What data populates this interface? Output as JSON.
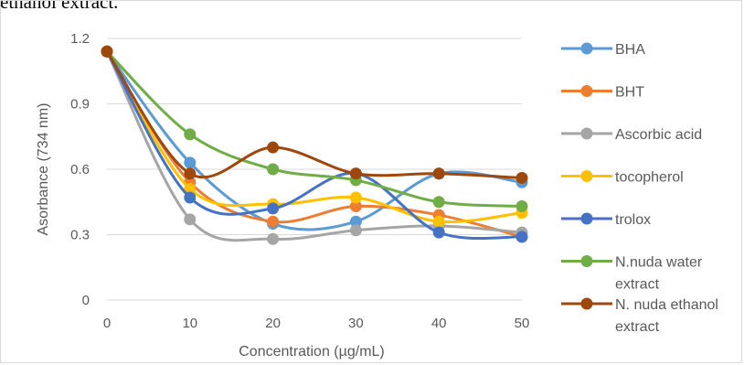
{
  "top_text": "ethanol extract.",
  "chart_data": {
    "type": "line",
    "smooth": true,
    "x": [
      0,
      10,
      20,
      30,
      40,
      50
    ],
    "xlabel": "Concentration (µg/mL)",
    "ylabel": "Asorbance (734 nm)",
    "xlim": [
      0,
      50
    ],
    "ylim": [
      0,
      1.2
    ],
    "xticks": [
      "0",
      "10",
      "20",
      "30",
      "40",
      "50"
    ],
    "yticks": [
      "0",
      "0.3",
      "0.6",
      "0.9",
      "1.2"
    ],
    "grid": "horizontal",
    "legend_position": "right",
    "series": [
      {
        "name": "BHA",
        "color": "#5b9bd5",
        "values": [
          1.14,
          0.63,
          0.35,
          0.36,
          0.58,
          0.54
        ]
      },
      {
        "name": "BHT",
        "color": "#ed7d31",
        "values": [
          1.14,
          0.54,
          0.36,
          0.43,
          0.39,
          0.29
        ]
      },
      {
        "name": "Ascorbic acid",
        "color": "#a5a5a5",
        "values": [
          1.14,
          0.37,
          0.28,
          0.32,
          0.34,
          0.31
        ]
      },
      {
        "name": "tocopherol",
        "color": "#ffc000",
        "values": [
          1.14,
          0.51,
          0.44,
          0.47,
          0.36,
          0.4
        ]
      },
      {
        "name": "trolox",
        "color": "#4472c4",
        "values": [
          1.14,
          0.47,
          0.42,
          0.58,
          0.31,
          0.29
        ]
      },
      {
        "name": "N.nuda water extract",
        "color": "#70ad47",
        "values": [
          1.14,
          0.76,
          0.6,
          0.55,
          0.45,
          0.43
        ]
      },
      {
        "name": "N. nuda ethanol extract",
        "color": "#9e480e",
        "values": [
          1.14,
          0.58,
          0.7,
          0.58,
          0.58,
          0.56
        ]
      }
    ]
  }
}
